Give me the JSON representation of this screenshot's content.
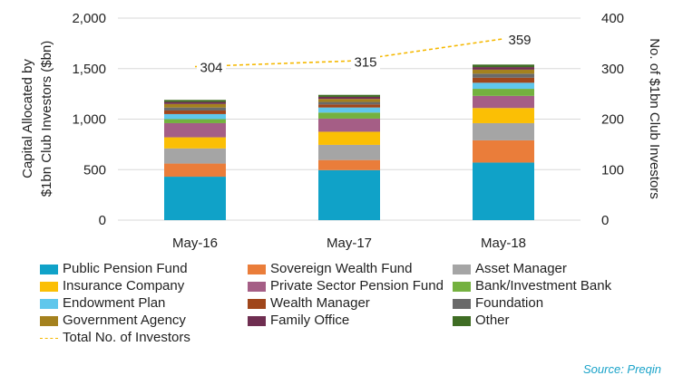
{
  "chart_data": {
    "type": "bar",
    "stacked": true,
    "categories": [
      "May-16",
      "May-17",
      "May-18"
    ],
    "y_left": {
      "label": "Capital Allocated by $1bn Club Investors ($bn)",
      "lim": [
        0,
        2000
      ],
      "ticks": [
        "0",
        "500",
        "1,000",
        "1,500",
        "2,000"
      ],
      "tick_values": [
        0,
        500,
        1000,
        1500,
        2000
      ]
    },
    "y_right": {
      "label": "No. of $1bn Club Investors",
      "lim": [
        0,
        400
      ],
      "ticks": [
        "0",
        "100",
        "200",
        "300",
        "400"
      ],
      "tick_values": [
        0,
        100,
        200,
        300,
        400
      ]
    },
    "grid": true,
    "series": [
      {
        "name": "Public Pension Fund",
        "color": "#10a2c8",
        "values": [
          430,
          495,
          570
        ]
      },
      {
        "name": "Sovereign Wealth Fund",
        "color": "#ea7d3a",
        "values": [
          130,
          100,
          220
        ]
      },
      {
        "name": "Asset Manager",
        "color": "#a5a5a5",
        "values": [
          150,
          150,
          170
        ]
      },
      {
        "name": "Insurance Company",
        "color": "#fbbf05",
        "values": [
          110,
          130,
          150
        ]
      },
      {
        "name": "Private Sector Pension Fund",
        "color": "#a55e86",
        "values": [
          140,
          130,
          120
        ]
      },
      {
        "name": "Bank/Investment Bank",
        "color": "#74b13f",
        "values": [
          40,
          60,
          70
        ]
      },
      {
        "name": "Endowment Plan",
        "color": "#60c7ec",
        "values": [
          50,
          50,
          60
        ]
      },
      {
        "name": "Wealth Manager",
        "color": "#a0461b",
        "values": [
          35,
          30,
          50
        ]
      },
      {
        "name": "Foundation",
        "color": "#6a6a6a",
        "values": [
          30,
          25,
          40
        ]
      },
      {
        "name": "Government Agency",
        "color": "#a4811e",
        "values": [
          35,
          30,
          40
        ]
      },
      {
        "name": "Family Office",
        "color": "#6f2e51",
        "values": [
          20,
          20,
          25
        ]
      },
      {
        "name": "Other",
        "color": "#3f6d24",
        "values": [
          20,
          20,
          25
        ]
      }
    ],
    "line": {
      "name": "Total No. of Investors",
      "color": "#f5b800",
      "axis": "right",
      "values": [
        304,
        315,
        359
      ],
      "labels": [
        "304",
        "315",
        "359"
      ]
    },
    "legend_position": "bottom"
  },
  "source": "Source: Preqin"
}
